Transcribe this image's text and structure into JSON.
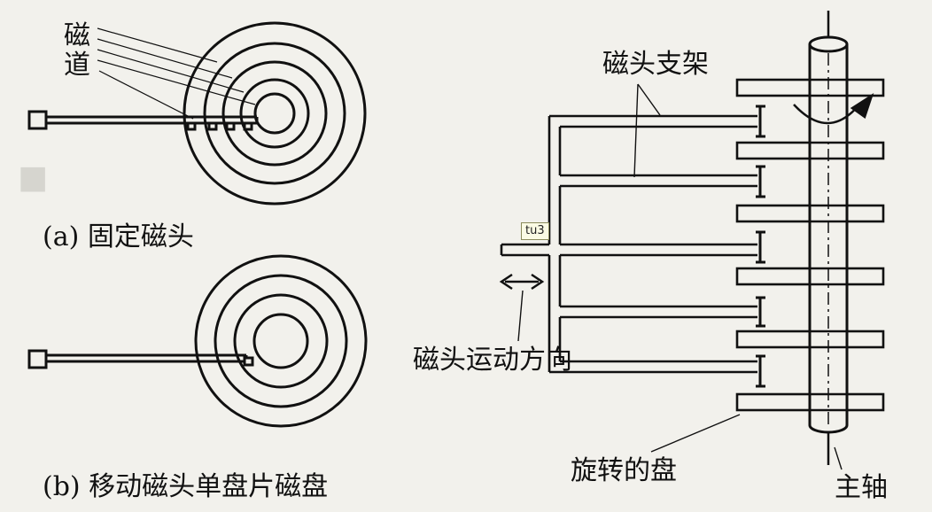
{
  "diagram_a": {
    "track_label": "磁道",
    "caption": "(a) 固定磁头"
  },
  "diagram_b": {
    "caption": "(b) 移动磁头单盘片磁盘"
  },
  "diagram_c": {
    "arm_label": "磁头支架",
    "motion_label": "磁头运动方向",
    "platter_label": "旋转的盘",
    "spindle_label": "主轴",
    "tag": "tu3"
  }
}
